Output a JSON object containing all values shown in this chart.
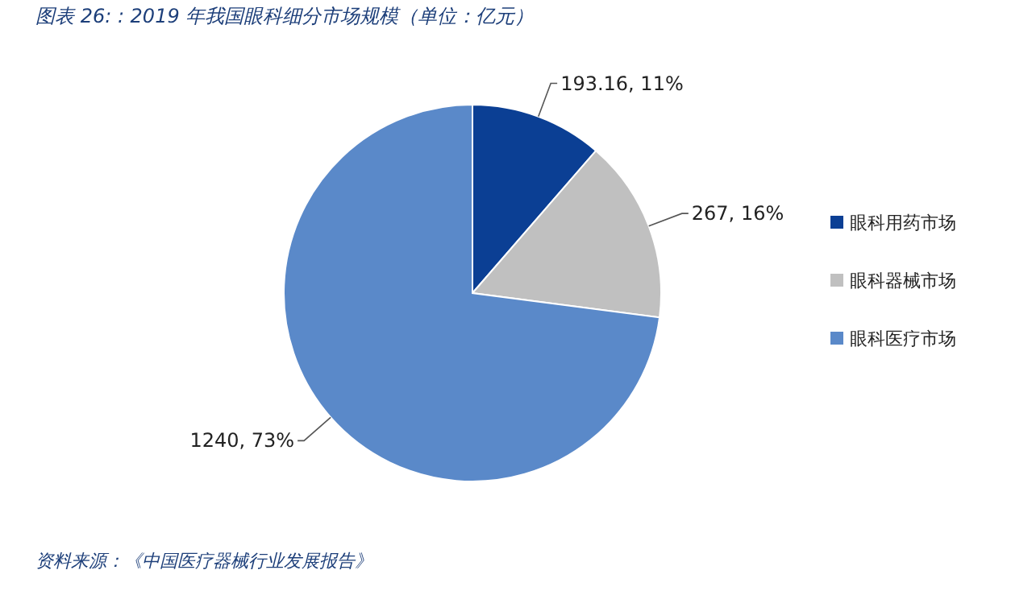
{
  "chart_data": {
    "type": "pie",
    "title": "图表 26: : 2019 年我国眼科细分市场规模（单位：亿元）",
    "categories": [
      "眼科用药市场",
      "眼科器械市场",
      "眼科医疗市场"
    ],
    "values": [
      193.16,
      267,
      1240
    ],
    "colors": [
      "#0b3f94",
      "#c0c0c0",
      "#5a89c9"
    ],
    "value_labels": [
      "193.16, 11%",
      "267, 16%",
      "1240, 73%"
    ],
    "legend": "right",
    "annotations": [
      "资料来源：《中国医疗器械行业发展报告》"
    ]
  }
}
